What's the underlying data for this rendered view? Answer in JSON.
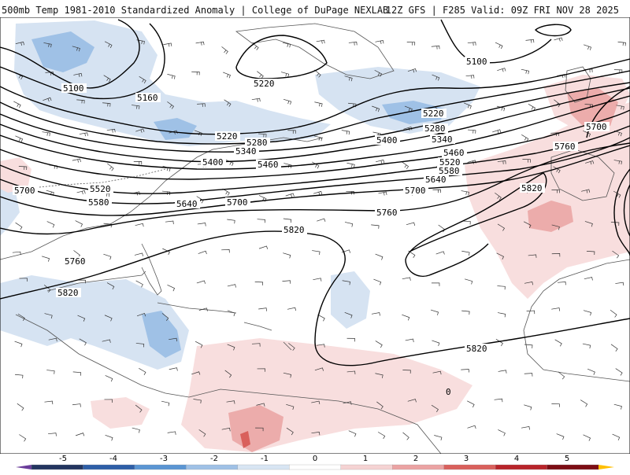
{
  "header": {
    "left_title": "500mb Temp 1981-2010 Standardized Anomaly | College of DuPage NEXLAB",
    "right_title": "12Z GFS | F285 Valid: 09Z FRI NOV 28 2025"
  },
  "map": {
    "region": "North Atlantic / Western Hemisphere",
    "contour_labels": [
      {
        "text": "5100"
      },
      {
        "text": "5100"
      },
      {
        "text": "5160"
      },
      {
        "text": "5220"
      },
      {
        "text": "5220"
      },
      {
        "text": "5220"
      },
      {
        "text": "5280"
      },
      {
        "text": "5280"
      },
      {
        "text": "5340"
      },
      {
        "text": "5340"
      },
      {
        "text": "5400"
      },
      {
        "text": "5400"
      },
      {
        "text": "5460"
      },
      {
        "text": "5460"
      },
      {
        "text": "5520"
      },
      {
        "text": "5520"
      },
      {
        "text": "5580"
      },
      {
        "text": "5580"
      },
      {
        "text": "5640"
      },
      {
        "text": "5640"
      },
      {
        "text": "5700"
      },
      {
        "text": "5700"
      },
      {
        "text": "5700"
      },
      {
        "text": "5760"
      },
      {
        "text": "5760"
      },
      {
        "text": "5760"
      },
      {
        "text": "5820"
      },
      {
        "text": "5820"
      },
      {
        "text": "5820"
      },
      {
        "text": "5820"
      },
      {
        "text": "5700"
      },
      {
        "text": "0"
      }
    ]
  },
  "colorbar": {
    "ticks": [
      "-5",
      "-4",
      "-3",
      "-2",
      "-1",
      "0",
      "1",
      "2",
      "3",
      "4",
      "5"
    ],
    "colors": [
      "#6a3d9a",
      "#23355f",
      "#2e5ea7",
      "#5b95d3",
      "#9fc1e6",
      "#d8e5f3",
      "#ffffff",
      "#f5d3d3",
      "#eba3a3",
      "#d9605c",
      "#b8242a",
      "#7c0d14",
      "#ffbf00"
    ]
  },
  "colors": {
    "cold_light": "#d6e3f2",
    "cold_mid": "#9fc1e6",
    "cold_dark": "#5b95d3",
    "warm_light": "#f8dede",
    "warm_mid": "#ecacab",
    "warm_dark": "#d9605c",
    "contour": "#000000",
    "coast": "#555555"
  }
}
